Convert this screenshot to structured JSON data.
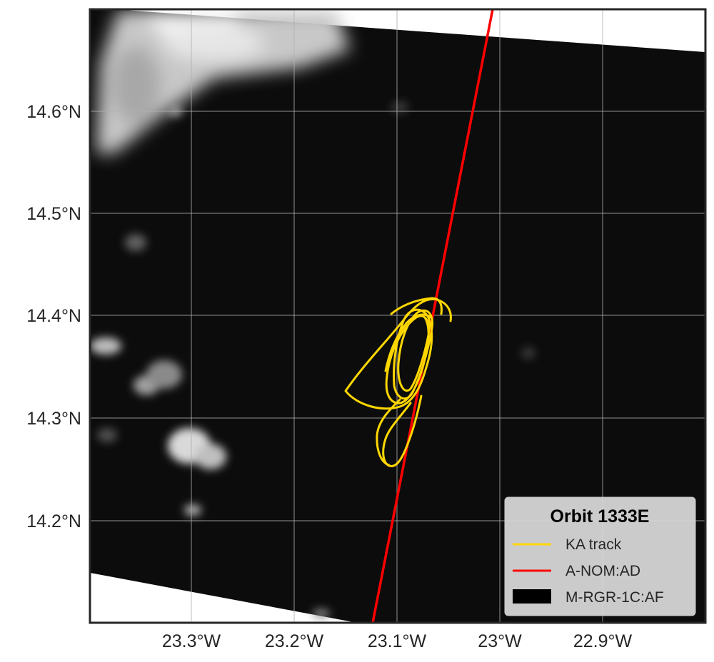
{
  "map": {
    "x_ticks": [
      "23.3°W",
      "23.2°W",
      "23.1°W",
      "23°W",
      "22.9°W"
    ],
    "y_ticks": [
      "14.6°N",
      "14.5°N",
      "14.4°N",
      "14.3°N",
      "14.2°N"
    ],
    "legend": {
      "title": "Orbit 1333E",
      "entries": [
        {
          "label": "KA track",
          "color": "#ffd700"
        },
        {
          "label": "A-NOM:AD",
          "color": "#ff0000"
        },
        {
          "label": "M-RGR-1C:AF",
          "color": "#000000"
        }
      ]
    },
    "colors": {
      "background_image": "#0c0c0c",
      "frame": "#262626",
      "gridline": "#b0b0b0"
    }
  }
}
